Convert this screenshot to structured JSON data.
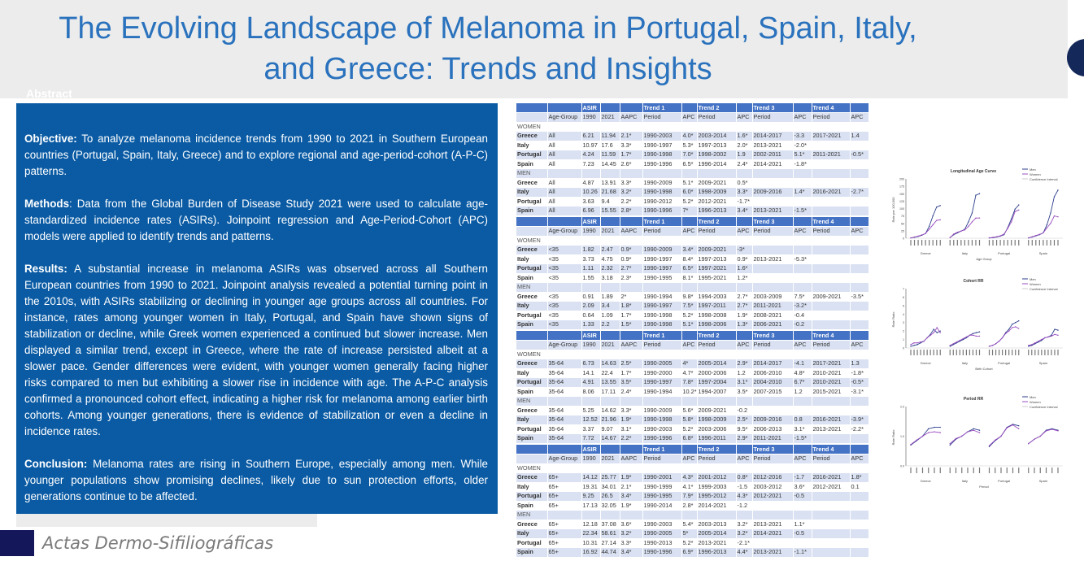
{
  "title": {
    "line1": "The Evolving Landscape of Melanoma in Portugal, Spain, Italy,",
    "line2": "and Greece: Trends and Insights"
  },
  "abstract": {
    "label": "Abstract",
    "sections": [
      {
        "heading": "Objective:",
        "text": " To analyze melanoma incidence trends from 1990 to 2021 in Southern European countries (Portugal, Spain, Italy, Greece) and to explore regional and age-period-cohort (A-P-C) patterns."
      },
      {
        "heading": "Methods",
        "text": ": Data from the Global Burden of Disease Study 2021 were used to calculate age-standardized incidence rates (ASIRs). Joinpoint regression and Age-Period-Cohort (APC) models were applied to identify trends and patterns."
      },
      {
        "heading": "Results:",
        "text": " A substantial increase in melanoma ASIRs was observed across all Southern European countries from 1990 to 2021. Joinpoint analysis revealed a potential turning point in the 2010s, with ASIRs stabilizing or declining in younger age groups across all countries. For instance, rates among younger women in Italy, Portugal, and Spain have shown signs of stabilization or decline, while Greek women experienced a continued but slower increase. Men displayed a similar trend, except in Greece, where the rate of increase persisted albeit at a slower pace. Gender differences were evident, with younger women generally facing higher risks compared to men but exhibiting a slower rise in incidence with age. The A-P-C analysis confirmed a pronounced cohort effect, indicating a higher risk for melanoma among earlier birth cohorts. Among younger generations, there is evidence of stabilization or even a decline in incidence rates."
      },
      {
        "heading": "Conclusion:",
        "text": " Melanoma rates are rising in Southern Europe, especially among men. While younger populations show promising declines, likely due to sun protection efforts, older generations continue to be affected."
      }
    ]
  },
  "journal": "Actas Dermo-Sifiliográficas",
  "table_headers": {
    "group": [
      "",
      "",
      "ASIR",
      "",
      "",
      "Trend 1",
      "",
      "Trend 2",
      "",
      "Trend 3",
      "",
      "Trend 4",
      ""
    ],
    "cols": [
      "",
      "Age-Group",
      "1990",
      "2021",
      "AAPC",
      "Period",
      "APC",
      "Period",
      "APC",
      "Period",
      "APC",
      "Period",
      "APC"
    ]
  },
  "tables": [
    {
      "women_label": "WOMEN",
      "men_label": "MEN",
      "women": [
        [
          "Greece",
          "All",
          "6.21",
          "11.94",
          "2.1*",
          "1990-2003",
          "4.0*",
          "2003-2014",
          "1.6*",
          "2014-2017",
          "-3.3",
          "2017-2021",
          "1.4"
        ],
        [
          "Italy",
          "All",
          "10.97",
          "17.6",
          "3.3*",
          "1990-1997",
          "5.3*",
          "1997-2013",
          "2.0*",
          "2013-2021",
          "-2.0*",
          "",
          ""
        ],
        [
          "Portugal",
          "All",
          "4.24",
          "11.59",
          "1.7*",
          "1990-1998",
          "7.0*",
          "1998-2002",
          "1.9",
          "2002-2011",
          "5.1*",
          "2011-2021",
          "-0.5*"
        ],
        [
          "Spain",
          "All",
          "7.23",
          "14.45",
          "2.6*",
          "1990-1996",
          "6.5*",
          "1996-2014",
          "2.4*",
          "2014-2021",
          "-1.8*",
          "",
          ""
        ]
      ],
      "men": [
        [
          "Greece",
          "All",
          "4.87",
          "13.91",
          "3.3*",
          "1990-2009",
          "5.1*",
          "2009-2021",
          "0.5*",
          "",
          "",
          "",
          ""
        ],
        [
          "Italy",
          "All",
          "10.26",
          "21.68",
          "3.2*",
          "1990-1998",
          "6.0*",
          "1998-2009",
          "3.3*",
          "2009-2016",
          "1.4*",
          "2016-2021",
          "-2.7*"
        ],
        [
          "Portugal",
          "All",
          "3.63",
          "9.4",
          "2.2*",
          "1990-2012",
          "5.2*",
          "2012-2021",
          "-1.7*",
          "",
          "",
          "",
          ""
        ],
        [
          "Spain",
          "All",
          "6.96",
          "15.55",
          "2.8*",
          "1990-1996",
          "7*",
          "1996-2013",
          "3.4*",
          "2013-2021",
          "-1.5*",
          "",
          ""
        ]
      ]
    },
    {
      "women_label": "WOMEN",
      "men_label": "MEN",
      "women": [
        [
          "Greece",
          "<35",
          "1.82",
          "2.47",
          "0.9*",
          "1990-2009",
          "3.4*",
          "2009-2021",
          "-3*",
          "",
          "",
          "",
          ""
        ],
        [
          "Italy",
          "<35",
          "3.73",
          "4.75",
          "0.9*",
          "1990-1997",
          "8.4*",
          "1997-2013",
          "0.9*",
          "2013-2021",
          "-5.3*",
          "",
          ""
        ],
        [
          "Portugal",
          "<35",
          "1.11",
          "2.32",
          "2.7*",
          "1990-1997",
          "6.5*",
          "1997-2021",
          "1.6*",
          "",
          "",
          "",
          ""
        ],
        [
          "Spain",
          "<35",
          "1.55",
          "3.18",
          "2.3*",
          "1990-1995",
          "8.1*",
          "1995-2021",
          "1.2*",
          "",
          "",
          "",
          ""
        ]
      ],
      "men": [
        [
          "Greece",
          "<35",
          "0.91",
          "1.89",
          "2*",
          "1990-1994",
          "9.8*",
          "1994-2003",
          "2.7*",
          "2003-2009",
          "7.5*",
          "2009-2021",
          "-3.5*"
        ],
        [
          "Italy",
          "<35",
          "2.09",
          "3.4",
          "1.8*",
          "1990-1997",
          "7.5*",
          "1997-2011",
          "2.7*",
          "2011-2021",
          "-3.2*",
          "",
          ""
        ],
        [
          "Portugal",
          "<35",
          "0.64",
          "1.09",
          "1.7*",
          "1990-1998",
          "5.2*",
          "1998-2008",
          "1.9*",
          "2008-2021",
          "-0.4",
          "",
          ""
        ],
        [
          "Spain",
          "<35",
          "1.33",
          "2.2",
          "1.5*",
          "1990-1998",
          "5.1*",
          "1998-2006",
          "1.3*",
          "2006-2021",
          "-0.2",
          "",
          ""
        ]
      ]
    },
    {
      "women_label": "WOMEN",
      "men_label": "MEN",
      "women": [
        [
          "Greece",
          "35-64",
          "6.73",
          "14.63",
          "2.5*",
          "1990-2005",
          "4*",
          "2005-2014",
          "2.9*",
          "2014-2017",
          "-4.1",
          "2017-2021",
          "1.3"
        ],
        [
          "Italy",
          "35-64",
          "14.1",
          "22.4",
          "1.7*",
          "1990-2000",
          "4.7*",
          "2000-2006",
          "1.2",
          "2006-2010",
          "4.8*",
          "2010-2021",
          "-1.8*"
        ],
        [
          "Portugal",
          "35-64",
          "4.91",
          "13.55",
          "3.5*",
          "1990-1997",
          "7.8*",
          "1997-2004",
          "3.1*",
          "2004-2010",
          "6.7*",
          "2010-2021",
          "-0.5*"
        ],
        [
          "Spain",
          "35-64",
          "8.06",
          "17.11",
          "2.4*",
          "1990-1994",
          "10.2*",
          "1994-2007",
          "3.5*",
          "2007-2015",
          "1.2",
          "2015-2021",
          "-3.1*"
        ]
      ],
      "men": [
        [
          "Greece",
          "35-64",
          "5.25",
          "14.62",
          "3.3*",
          "1990-2009",
          "5.6*",
          "2009-2021",
          "-0.2",
          "",
          "",
          "",
          ""
        ],
        [
          "Italy",
          "35-64",
          "12.52",
          "21.96",
          "1.9*",
          "1990-1998",
          "5.8*",
          "1998-2009",
          "2.5*",
          "2009-2016",
          "0.8",
          "2016-2021",
          "-3.9*"
        ],
        [
          "Portugal",
          "35-64",
          "3.37",
          "9.07",
          "3.1*",
          "1990-2003",
          "5.2*",
          "2003-2006",
          "9.5*",
          "2006-2013",
          "3.1*",
          "2013-2021",
          "-2.2*"
        ],
        [
          "Spain",
          "35-64",
          "7.72",
          "14.67",
          "2.2*",
          "1990-1996",
          "6.8*",
          "1996-2011",
          "2.9*",
          "2011-2021",
          "-1.5*",
          "",
          ""
        ]
      ]
    },
    {
      "women_label": "WOMEN",
      "men_label": "MEN",
      "women": [
        [
          "Greece",
          "65+",
          "14.12",
          "25.77",
          "1.9*",
          "1990-2001",
          "4.3*",
          "2001-2012",
          "0.8*",
          "2012-2016",
          "-1.7",
          "2016-2021",
          "1.8*"
        ],
        [
          "Italy",
          "65+",
          "19.31",
          "34.01",
          "2.1*",
          "1990-1999",
          "4.1*",
          "1999-2003",
          "-1.5",
          "2003-2012",
          "3.6*",
          "2012-2021",
          "0.1"
        ],
        [
          "Portugal",
          "65+",
          "9.25",
          "26.5",
          "3.4*",
          "1990-1995",
          "7.9*",
          "1995-2012",
          "4.3*",
          "2012-2021",
          "-0.5",
          "",
          ""
        ],
        [
          "Spain",
          "65+",
          "17.13",
          "32.05",
          "1.9*",
          "1990-2014",
          "2.8*",
          "2014-2021",
          "-1.2",
          "",
          "",
          "",
          ""
        ]
      ],
      "men": [
        [
          "Greece",
          "65+",
          "12.18",
          "37.08",
          "3.6*",
          "1990-2003",
          "5.4*",
          "2003-2013",
          "3.2*",
          "2013-2021",
          "1.1*",
          "",
          ""
        ],
        [
          "Italy",
          "65+",
          "22.34",
          "58.61",
          "3.2*",
          "1990-2005",
          "5*",
          "2005-2014",
          "3.2*",
          "2014-2021",
          "-0.5",
          "",
          ""
        ],
        [
          "Portugal",
          "65+",
          "10.31",
          "27.14",
          "3.3*",
          "1990-2013",
          "5.2*",
          "2013-2021",
          "-2.1*",
          "",
          "",
          "",
          ""
        ],
        [
          "Spain",
          "65+",
          "16.92",
          "44.74",
          "3.4*",
          "1990-1996",
          "6.9*",
          "1996-2013",
          "4.4*",
          "2013-2021",
          "-1.1*",
          "",
          ""
        ]
      ]
    }
  ],
  "chart_data": [
    {
      "type": "line",
      "title": "Longitudinal Age Curve",
      "xlabel": "Age Group",
      "ylabel": "Rate per 100,000",
      "ylim": [
        0,
        200
      ],
      "yticks": [
        "0",
        "25",
        "50",
        "75",
        "100",
        "125",
        "150",
        "175",
        "200"
      ],
      "groups": [
        "Greece",
        "Italy",
        "Portugal",
        "Spain"
      ],
      "legend": [
        "Men",
        "Women",
        "Confidence Interval"
      ],
      "legend_position": "top-right",
      "series": [
        {
          "name": "Men",
          "values": [
            [
              1,
              3,
              6,
              10,
              16,
              40,
              75,
              105,
              110
            ],
            [
              2,
              12,
              18,
              24,
              30,
              55,
              85,
              145,
              150
            ],
            [
              1,
              2,
              4,
              7,
              12,
              35,
              65,
              98,
              112
            ],
            [
              1,
              4,
              8,
              12,
              18,
              45,
              85,
              140,
              162
            ]
          ]
        },
        {
          "name": "Women",
          "values": [
            [
              1,
              4,
              7,
              11,
              16,
              30,
              45,
              60,
              62
            ],
            [
              2,
              14,
              20,
              24,
              28,
              40,
              55,
              68,
              68
            ],
            [
              1,
              3,
              5,
              8,
              14,
              33,
              55,
              90,
              95
            ],
            [
              1,
              5,
              9,
              13,
              18,
              35,
              50,
              75,
              72
            ]
          ]
        }
      ],
      "colors": {
        "Men": "#2c3e8c",
        "Women": "#9b4fc0"
      }
    },
    {
      "type": "line",
      "title": "Cohort RR",
      "xlabel": "Birth Cohort",
      "ylabel": "Rate Ratio",
      "ylim": [
        0,
        7
      ],
      "yticks": [
        "0",
        "1",
        "2",
        "3",
        "4",
        "5",
        "6",
        "7"
      ],
      "groups": [
        "Greece",
        "Italy",
        "Portugal",
        "Spain"
      ],
      "legend": [
        "Men",
        "Women",
        "Confidence Interval"
      ],
      "legend_position": "top-right",
      "series": [
        {
          "name": "Men",
          "values": [
            [
              0.2,
              0.3,
              0.4,
              0.6,
              0.8,
              1.2,
              1.6,
              2.2,
              1.8,
              2.0
            ],
            [
              0.2,
              0.4,
              0.6,
              0.8,
              1.0,
              1.2,
              1.5,
              1.7,
              1.8,
              1.9
            ],
            [
              0.2,
              0.3,
              0.5,
              0.8,
              1.2,
              1.8,
              2.2,
              2.8,
              3.0,
              3.2
            ],
            [
              0.2,
              0.3,
              0.5,
              0.7,
              0.9,
              1.2,
              1.3,
              1.5,
              2.2,
              2.1
            ]
          ]
        },
        {
          "name": "Women",
          "values": [
            [
              0.4,
              0.6,
              0.6,
              0.7,
              0.8,
              1.2,
              1.5,
              1.8,
              2.4,
              1.8
            ],
            [
              0.3,
              0.5,
              0.7,
              0.9,
              1.1,
              1.3,
              1.5,
              1.5,
              1.4,
              1.4
            ],
            [
              0.2,
              0.3,
              0.5,
              0.8,
              1.2,
              1.7,
              2.0,
              2.4,
              2.5,
              2.3
            ],
            [
              0.3,
              0.4,
              0.6,
              0.8,
              1.0,
              1.2,
              1.3,
              1.4,
              1.6,
              1.5
            ]
          ]
        }
      ],
      "colors": {
        "Men": "#2c3e8c",
        "Women": "#9b4fc0"
      }
    },
    {
      "type": "line",
      "title": "Period RR",
      "xlabel": "Period",
      "ylabel": "Rate Ratio",
      "ylim": [
        0.0,
        2.0
      ],
      "yticks": [
        "0.0",
        "1.0",
        "2.0"
      ],
      "groups": [
        "Greece",
        "Italy",
        "Portugal",
        "Spain"
      ],
      "legend": [
        "Men",
        "Women",
        "Confidence Interval"
      ],
      "legend_position": "top-right",
      "series": [
        {
          "name": "Men",
          "values": [
            [
              0.7,
              0.85,
              1.0,
              1.25,
              1.3,
              1.3
            ],
            [
              0.7,
              0.9,
              1.0,
              1.15,
              1.25,
              1.2
            ],
            [
              0.65,
              0.85,
              1.0,
              1.3,
              1.4,
              1.35
            ],
            [
              0.75,
              0.9,
              1.0,
              1.2,
              1.25,
              1.2
            ]
          ]
        },
        {
          "name": "Women",
          "values": [
            [
              0.72,
              0.87,
              1.0,
              1.12,
              1.15,
              1.12
            ],
            [
              0.75,
              0.92,
              1.0,
              1.15,
              1.2,
              1.12
            ],
            [
              0.68,
              0.87,
              1.0,
              1.28,
              1.38,
              1.25
            ],
            [
              0.75,
              0.9,
              1.0,
              1.18,
              1.23,
              1.18
            ]
          ]
        }
      ],
      "colors": {
        "Men": "#2c3e8c",
        "Women": "#9b4fc0"
      }
    }
  ]
}
